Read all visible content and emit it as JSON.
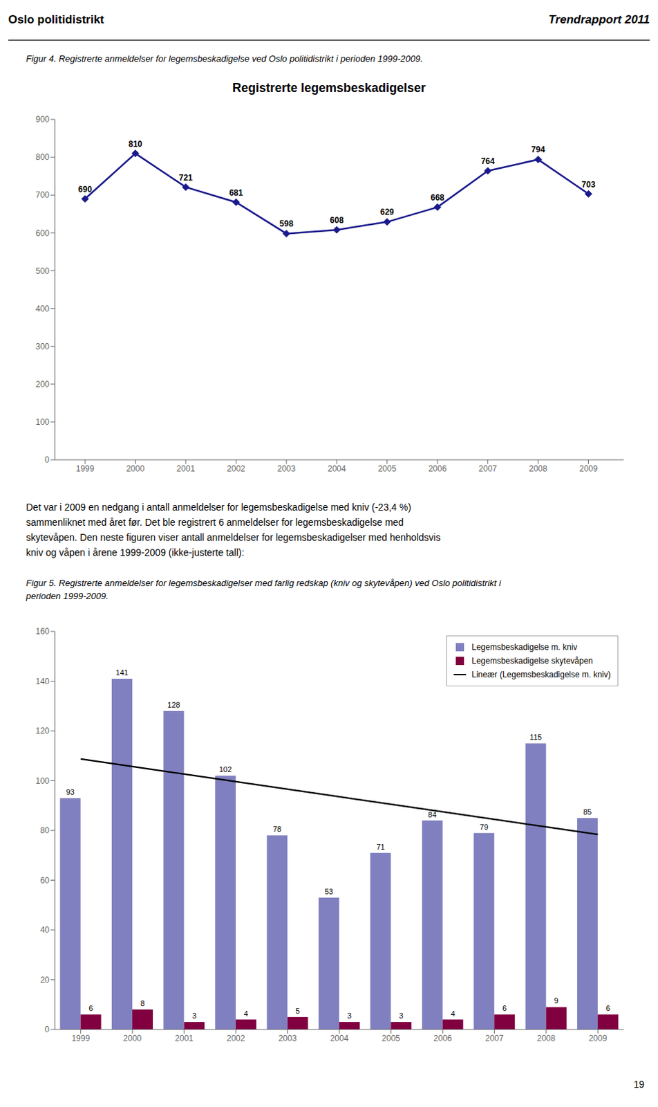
{
  "chart_data": [
    {
      "type": "line",
      "title": "Registrerte legemsbeskadigelser",
      "annotations": [
        "Oslo politidistrikt",
        "Trendrapport 2011",
        "Figur 4. Registrerte anmeldelser for legemsbeskadigelse ved Oslo politidistrikt i perioden 1999-2009."
      ],
      "x": [
        1999,
        2000,
        2001,
        2002,
        2003,
        2004,
        2005,
        2006,
        2007,
        2008,
        2009
      ],
      "values": [
        690,
        810,
        721,
        681,
        598,
        608,
        629,
        668,
        764,
        794,
        703
      ],
      "color": "#1a1a8c",
      "marker": "diamond",
      "data_labels": true,
      "grid": false,
      "xlim": [
        1998.4,
        2009.7
      ],
      "xticks": [
        1999,
        2000,
        2001,
        2002,
        2003,
        2004,
        2005,
        2006,
        2007,
        2008,
        2009
      ],
      "ylim": [
        0,
        900
      ],
      "yticks": [
        0,
        100,
        200,
        300,
        400,
        500,
        600,
        700,
        800,
        900
      ]
    },
    {
      "type": "bar",
      "annotations": [
        "Det var i 2009 en nedgang i antall anmeldelser for legemsbeskadigelse med kniv (-23,4 %)",
        "sammenliknet med året før. Det ble registrert 6 anmeldelser for legemsbeskadigelse med",
        "skytevåpen. Den neste figuren viser antall anmeldelser for legemsbeskadigelser med henholdsvis",
        "kniv og våpen i årene 1999-2009 (ikke-justerte tall):",
        "Figur 5. Registrerte anmeldelser for legemsbeskadigelser med farlig redskap (kniv og skytevåpen) ved Oslo politidistrikt i",
        "perioden 1999-2009.",
        "19"
      ],
      "categories": [
        1999,
        2000,
        2001,
        2002,
        2003,
        2004,
        2005,
        2006,
        2007,
        2008,
        2009
      ],
      "series": [
        {
          "name": "Legemsbeskadigelse m. kniv",
          "type": "bar",
          "color": "#8080c0",
          "data_labels": true,
          "values": [
            93,
            141,
            128,
            102,
            78,
            53,
            71,
            84,
            79,
            115,
            85
          ]
        },
        {
          "name": "Legemsbeskadigelse skytevåpen",
          "type": "bar",
          "color": "#800040",
          "data_labels": true,
          "values": [
            6,
            8,
            3,
            4,
            5,
            3,
            3,
            4,
            6,
            9,
            6
          ]
        },
        {
          "name": "Lineær (Legemsbeskadigelse m. kniv)",
          "type": "line",
          "color": "#000000",
          "data_labels": false,
          "values": [
            108.73,
            105.69,
            102.65,
            99.62,
            96.58,
            93.55,
            90.51,
            87.47,
            84.44,
            81.4,
            78.36
          ]
        }
      ],
      "ylim": [
        0,
        160
      ],
      "yticks": [
        0,
        20,
        40,
        60,
        80,
        100,
        120,
        140,
        160
      ],
      "legend": "upper right",
      "grid": false
    }
  ]
}
